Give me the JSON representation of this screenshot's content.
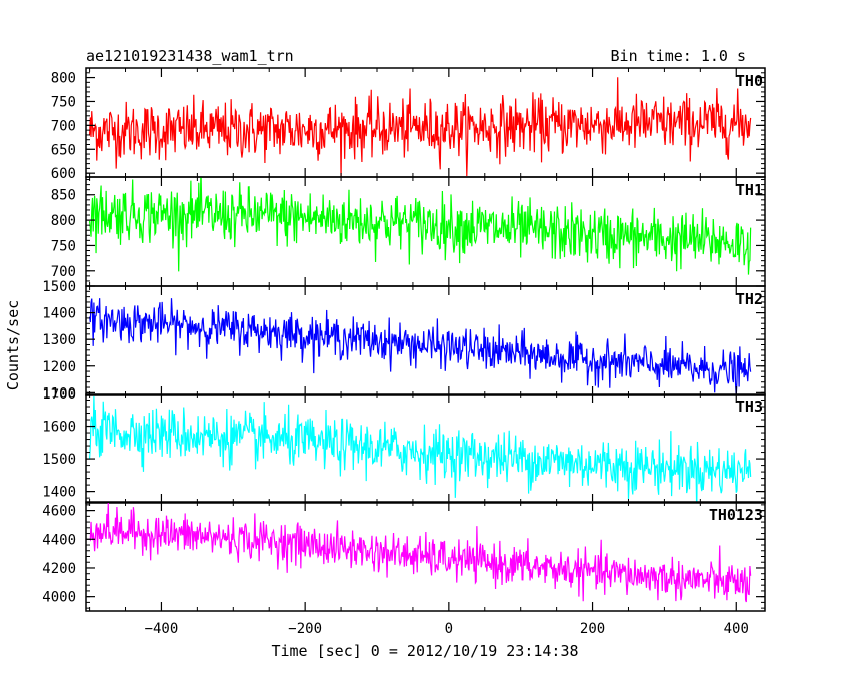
{
  "header": {
    "title": "ae121019231438_wam1_trn",
    "bin_time": "Bin time: 1.0 s"
  },
  "chart_data": {
    "type": "line",
    "title": "ae121019231438_wam1_trn",
    "xlabel": "Time [sec] 0 = 2012/10/19 23:14:38",
    "ylabel": "Counts/sec",
    "xlim": [
      -505,
      440
    ],
    "x_ticks": [
      -400,
      -200,
      0,
      200,
      400
    ],
    "x_tick_labels": [
      "−400",
      "−200",
      "0",
      "200",
      "400"
    ],
    "x_range_data": [
      -500,
      420
    ],
    "bin_time_s": 1.0,
    "grid": false,
    "panels": [
      {
        "name": "TH0",
        "color": "#ff0000",
        "ylim": [
          592,
          820
        ],
        "yticks": [
          600,
          650,
          700,
          750,
          800
        ],
        "ytick_labels": [
          "600",
          "650",
          "700",
          "750",
          "800"
        ],
        "trend": [
          {
            "x": -500,
            "y": 688
          },
          {
            "x": -250,
            "y": 690
          },
          {
            "x": 0,
            "y": 695
          },
          {
            "x": 200,
            "y": 702
          },
          {
            "x": 420,
            "y": 705
          }
        ],
        "noise_sd": 30
      },
      {
        "name": "TH1",
        "color": "#00ff00",
        "ylim": [
          670,
          885
        ],
        "yticks": [
          700,
          750,
          800,
          850
        ],
        "ytick_labels": [
          "700",
          "750",
          "800",
          "850"
        ],
        "trend": [
          {
            "x": -500,
            "y": 815
          },
          {
            "x": -250,
            "y": 808
          },
          {
            "x": 0,
            "y": 790
          },
          {
            "x": 200,
            "y": 770
          },
          {
            "x": 420,
            "y": 755
          }
        ],
        "noise_sd": 28
      },
      {
        "name": "TH2",
        "color": "#0000ff",
        "ylim": [
          1090,
          1500
        ],
        "yticks": [
          1100,
          1200,
          1300,
          1400,
          1500
        ],
        "ytick_labels": [
          "1100",
          "1200",
          "1300",
          "1400",
          "1500"
        ],
        "trend": [
          {
            "x": -500,
            "y": 1375
          },
          {
            "x": -250,
            "y": 1330
          },
          {
            "x": 0,
            "y": 1270
          },
          {
            "x": 200,
            "y": 1220
          },
          {
            "x": 420,
            "y": 1175
          }
        ],
        "noise_sd": 38
      },
      {
        "name": "TH3",
        "color": "#00ffff",
        "ylim": [
          1365,
          1700
        ],
        "yticks": [
          1400,
          1500,
          1600,
          1700
        ],
        "ytick_labels": [
          "1400",
          "1500",
          "1600",
          "1700"
        ],
        "trend": [
          {
            "x": -500,
            "y": 1590
          },
          {
            "x": -250,
            "y": 1560
          },
          {
            "x": 0,
            "y": 1515
          },
          {
            "x": 200,
            "y": 1485
          },
          {
            "x": 420,
            "y": 1460
          }
        ],
        "noise_sd": 40
      },
      {
        "name": "TH0123",
        "color": "#ff00ff",
        "ylim": [
          3900,
          4660
        ],
        "yticks": [
          4000,
          4200,
          4400,
          4600
        ],
        "ytick_labels": [
          "4000",
          "4200",
          "4400",
          "4600"
        ],
        "trend": [
          {
            "x": -500,
            "y": 4470
          },
          {
            "x": -250,
            "y": 4390
          },
          {
            "x": 0,
            "y": 4260
          },
          {
            "x": 200,
            "y": 4170
          },
          {
            "x": 420,
            "y": 4090
          }
        ],
        "noise_sd": 70
      }
    ]
  }
}
